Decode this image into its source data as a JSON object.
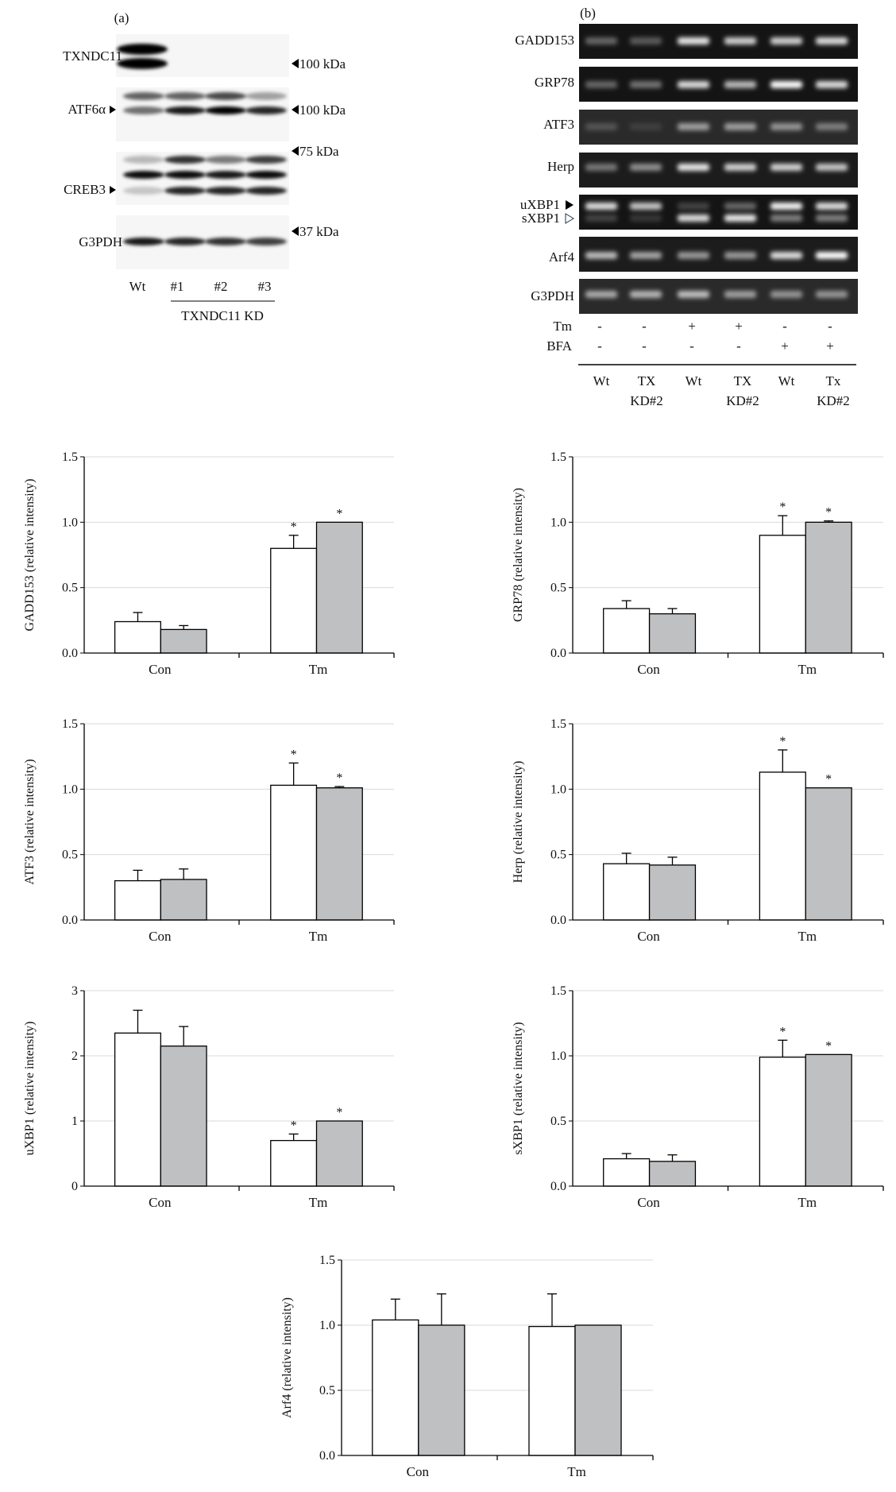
{
  "panel_a": {
    "label": "(a)",
    "blots": [
      {
        "name": "TXNDC11",
        "marker": "100 kDa"
      },
      {
        "name": "ATF6α",
        "marker": "100 kDa"
      },
      {
        "name": "CREB3",
        "marker": "75 kDa"
      },
      {
        "name": "G3PDH",
        "marker": "37 kDa"
      }
    ],
    "lanes": [
      "Wt",
      "#1",
      "#2",
      "#3"
    ],
    "group_label": "TXNDC11 KD"
  },
  "panel_b": {
    "label": "(b)",
    "gels": [
      "GADD153",
      "GRP78",
      "ATF3",
      "Herp",
      "uXBP1",
      "sXBP1",
      "Arf4",
      "G3PDH"
    ],
    "treatments": [
      {
        "name": "Tm",
        "values": [
          "-",
          "-",
          "+",
          "+",
          "-",
          "-"
        ]
      },
      {
        "name": "BFA",
        "values": [
          "-",
          "-",
          "-",
          "-",
          "+",
          "+"
        ]
      }
    ],
    "lanes": [
      [
        "Wt",
        ""
      ],
      [
        "TX",
        "KD#2"
      ],
      [
        "Wt",
        ""
      ],
      [
        "TX",
        "KD#2"
      ],
      [
        "Wt",
        ""
      ],
      [
        "Tx",
        "KD#2"
      ]
    ]
  },
  "colors": {
    "wt_bar": "#ffffff",
    "kd_bar": "#bfc0c2",
    "grid": "#d9d9d9"
  },
  "chart_data": [
    {
      "type": "bar",
      "ylabel": "GADD153 (relative intensity)",
      "categories": [
        "Con",
        "Tm"
      ],
      "ylim": [
        0,
        1.5
      ],
      "yticks": [
        "0.0",
        "0.5",
        "1.0",
        "1.5"
      ],
      "grid": true,
      "series": [
        {
          "values": [
            0.24,
            0.8
          ],
          "errors": [
            0.07,
            0.1
          ],
          "sig": [
            "",
            "*"
          ]
        },
        {
          "values": [
            0.18,
            1.0
          ],
          "errors": [
            0.03,
            0.0
          ],
          "sig": [
            "",
            "*"
          ]
        }
      ]
    },
    {
      "type": "bar",
      "ylabel": "GRP78 (relative intensity)",
      "categories": [
        "Con",
        "Tm"
      ],
      "ylim": [
        0,
        1.5
      ],
      "yticks": [
        "0.0",
        "0.5",
        "1.0",
        "1.5"
      ],
      "grid": true,
      "series": [
        {
          "values": [
            0.34,
            0.9
          ],
          "errors": [
            0.06,
            0.15
          ],
          "sig": [
            "",
            "*"
          ]
        },
        {
          "values": [
            0.3,
            1.0
          ],
          "errors": [
            0.04,
            0.01
          ],
          "sig": [
            "",
            "*"
          ]
        }
      ]
    },
    {
      "type": "bar",
      "ylabel": "ATF3 (relative intensity)",
      "categories": [
        "Con",
        "Tm"
      ],
      "ylim": [
        0,
        1.5
      ],
      "yticks": [
        "0.0",
        "0.5",
        "1.0",
        "1.5"
      ],
      "grid": true,
      "series": [
        {
          "values": [
            0.3,
            1.03
          ],
          "errors": [
            0.08,
            0.17
          ],
          "sig": [
            "",
            "*"
          ]
        },
        {
          "values": [
            0.31,
            1.01
          ],
          "errors": [
            0.08,
            0.01
          ],
          "sig": [
            "",
            "*"
          ]
        }
      ]
    },
    {
      "type": "bar",
      "ylabel": "Herp (relative intensity)",
      "categories": [
        "Con",
        "Tm"
      ],
      "ylim": [
        0,
        1.5
      ],
      "yticks": [
        "0.0",
        "0.5",
        "1.0",
        "1.5"
      ],
      "grid": true,
      "series": [
        {
          "values": [
            0.43,
            1.13
          ],
          "errors": [
            0.08,
            0.17
          ],
          "sig": [
            "",
            "*"
          ]
        },
        {
          "values": [
            0.42,
            1.01
          ],
          "errors": [
            0.06,
            0.0
          ],
          "sig": [
            "",
            "*"
          ]
        }
      ]
    },
    {
      "type": "bar",
      "ylabel": "uXBP1 (relative intensity)",
      "categories": [
        "Con",
        "Tm"
      ],
      "ylim": [
        0,
        3
      ],
      "yticks": [
        "0",
        "1",
        "2",
        "3"
      ],
      "grid": true,
      "series": [
        {
          "values": [
            2.35,
            0.7
          ],
          "errors": [
            0.35,
            0.1
          ],
          "sig": [
            "",
            "*"
          ]
        },
        {
          "values": [
            2.15,
            1.0
          ],
          "errors": [
            0.3,
            0.0
          ],
          "sig": [
            "",
            "*"
          ]
        }
      ]
    },
    {
      "type": "bar",
      "ylabel": "sXBP1 (relative intensity)",
      "categories": [
        "Con",
        "Tm"
      ],
      "ylim": [
        0,
        1.5
      ],
      "yticks": [
        "0.0",
        "0.5",
        "1.0",
        "1.5"
      ],
      "grid": true,
      "series": [
        {
          "values": [
            0.21,
            0.99
          ],
          "errors": [
            0.04,
            0.13
          ],
          "sig": [
            "",
            "*"
          ]
        },
        {
          "values": [
            0.19,
            1.01
          ],
          "errors": [
            0.05,
            0.0
          ],
          "sig": [
            "",
            "*"
          ]
        }
      ]
    },
    {
      "type": "bar",
      "ylabel": "Arf4 (relative intensity)",
      "categories": [
        "Con",
        "Tm"
      ],
      "ylim": [
        0,
        1.5
      ],
      "yticks": [
        "0.0",
        "0.5",
        "1.0",
        "1.5"
      ],
      "grid": true,
      "series": [
        {
          "values": [
            1.04,
            0.99
          ],
          "errors": [
            0.16,
            0.25
          ],
          "sig": [
            "",
            ""
          ]
        },
        {
          "values": [
            1.0,
            1.0
          ],
          "errors": [
            0.24,
            0.0
          ],
          "sig": [
            "",
            ""
          ]
        }
      ]
    }
  ]
}
